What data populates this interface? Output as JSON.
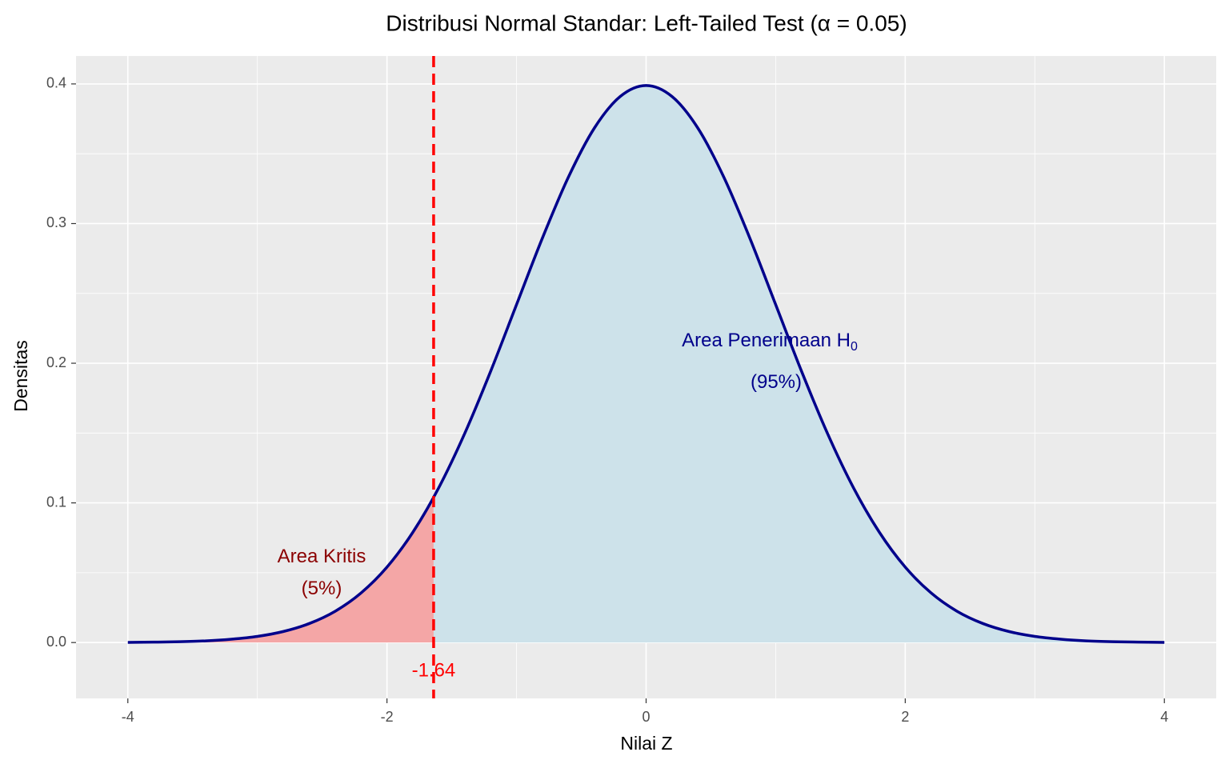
{
  "chart_data": {
    "type": "density",
    "title": "Distribusi Normal Standar: Left-Tailed Test (α = 0.05)",
    "x_label": "Nilai Z",
    "y_label": "Densitas",
    "x": [
      -4,
      -3.8,
      -3.6,
      -3.4,
      -3.2,
      -3,
      -2.8,
      -2.6,
      -2.4,
      -2.2,
      -2,
      -1.8,
      -1.6,
      -1.4,
      -1.2,
      -1,
      -0.8,
      -0.6,
      -0.4,
      -0.2,
      0,
      0.2,
      0.4,
      0.6,
      0.8,
      1,
      1.2,
      1.4,
      1.6,
      1.8,
      2,
      2.2,
      2.4,
      2.6,
      2.8,
      3,
      3.2,
      3.4,
      3.6,
      3.8,
      4
    ],
    "values": [
      0.0001,
      0.0003,
      0.0006,
      0.0012,
      0.0024,
      0.0044,
      0.0079,
      0.0136,
      0.0224,
      0.0355,
      0.054,
      0.079,
      0.1109,
      0.1497,
      0.1942,
      0.242,
      0.2897,
      0.3332,
      0.3683,
      0.391,
      0.3989,
      0.391,
      0.3683,
      0.3332,
      0.2897,
      0.242,
      0.1942,
      0.1497,
      0.1109,
      0.079,
      0.054,
      0.0355,
      0.0224,
      0.0136,
      0.0079,
      0.0044,
      0.0024,
      0.0012,
      0.0006,
      0.0003,
      0.0001
    ],
    "color": "#00008b",
    "critical_value": -1.64,
    "critical_color": "#ff0000",
    "critical_fill": "#f4a6a6",
    "acceptance_fill": "#cde2ea",
    "annotations": [
      {
        "text": "Area Kritis",
        "color": "#8b0000"
      },
      {
        "text": "(5%)",
        "color": "#8b0000"
      },
      {
        "text": "Area Penerimaan H",
        "subscript": "0",
        "color": "#00008b"
      },
      {
        "text": "(95%)",
        "color": "#00008b"
      }
    ],
    "xlim": [
      -4.4,
      4.4
    ],
    "ylim": [
      -0.04,
      0.42
    ],
    "xticks": [
      -4,
      -2,
      0,
      2,
      4
    ],
    "yticks": [
      {
        "value": 0,
        "label": "0.0"
      },
      0.1,
      0.2,
      0.3,
      0.4
    ],
    "x_minor": [
      -3,
      -1,
      1,
      3
    ],
    "y_minor": [
      0.05,
      0.15,
      0.25,
      0.35
    ],
    "grid": true
  }
}
